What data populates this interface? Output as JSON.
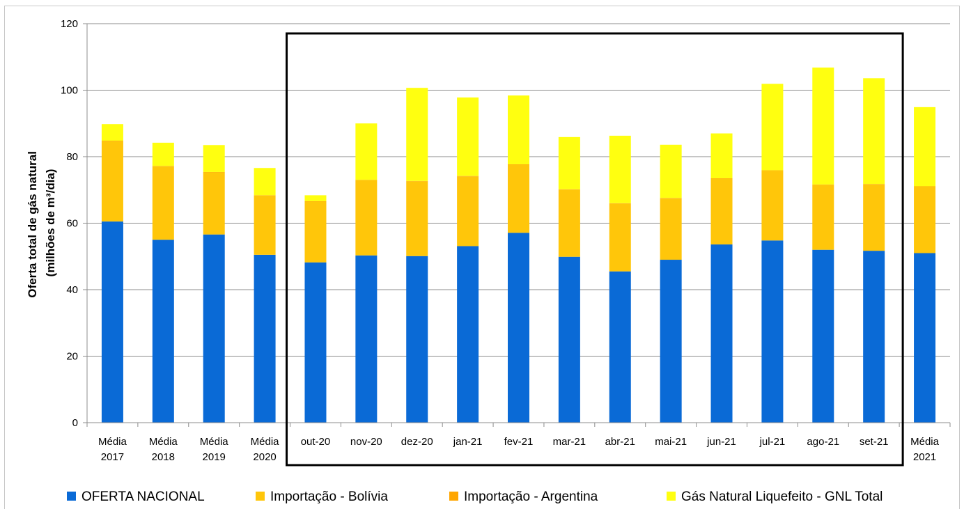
{
  "chart_data": {
    "type": "bar",
    "stacked": true,
    "title": "",
    "ylabel_lines": [
      "Oferta total  de gás natural",
      "(milhões de m³/dia)"
    ],
    "xlabel": "",
    "ylim": [
      0,
      120
    ],
    "yticks": [
      0,
      20,
      40,
      60,
      80,
      100,
      120
    ],
    "grid": true,
    "legend_position": "bottom",
    "categories": [
      [
        "Média",
        "2017"
      ],
      [
        "Média",
        "2018"
      ],
      [
        "Média",
        "2019"
      ],
      [
        "Média",
        "2020"
      ],
      [
        "out-20"
      ],
      [
        "nov-20"
      ],
      [
        "dez-20"
      ],
      [
        "jan-21"
      ],
      [
        "fev-21"
      ],
      [
        "mar-21"
      ],
      [
        "abr-21"
      ],
      [
        "mai-21"
      ],
      [
        "jun-21"
      ],
      [
        "jul-21"
      ],
      [
        "ago-21"
      ],
      [
        "set-21"
      ],
      [
        "Média",
        "2021"
      ]
    ],
    "highlight_box": {
      "from_category": 4,
      "to_category": 15
    },
    "series": [
      {
        "name": "OFERTA NACIONAL",
        "color": "#0a6ad6",
        "values": [
          60.5,
          55.0,
          56.6,
          50.5,
          48.2,
          50.3,
          50.1,
          53.1,
          57.1,
          49.9,
          45.5,
          49.0,
          53.6,
          54.8,
          52.0,
          51.7,
          51.0
        ]
      },
      {
        "name": "Importação - Bolívia",
        "color": "#ffc60a",
        "values": [
          24.1,
          22.1,
          18.7,
          17.8,
          18.3,
          22.6,
          22.5,
          21.0,
          20.5,
          20.2,
          20.4,
          18.5,
          19.8,
          21.0,
          19.5,
          20.0,
          20.0
        ]
      },
      {
        "name": "Importação - Argentina",
        "color": "#ffa600",
        "values": [
          0.2,
          0.1,
          0.1,
          0.1,
          0.1,
          0.1,
          0.1,
          0.1,
          0.1,
          0.1,
          0.1,
          0.1,
          0.1,
          0.1,
          0.1,
          0.1,
          0.1
        ]
      },
      {
        "name": "Gás Natural Liquefeito - GNL Total",
        "color": "#ffff10",
        "values": [
          5.0,
          7.0,
          8.1,
          8.2,
          1.8,
          17.0,
          28.0,
          23.6,
          20.7,
          15.7,
          20.3,
          16.0,
          13.5,
          26.0,
          35.2,
          31.8,
          23.8
        ]
      }
    ]
  }
}
